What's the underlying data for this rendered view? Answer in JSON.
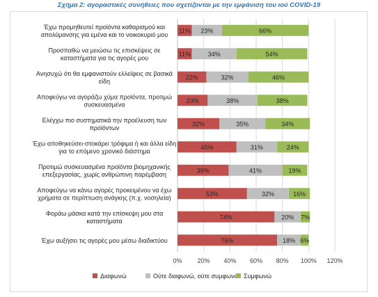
{
  "chart_data": {
    "type": "bar",
    "stacked": true,
    "orientation": "horizontal",
    "title": "Σχήμα 2: αγοραστικές συνήθειες που σχετίζονται με την εμφάνιση του ιού COVID-19",
    "categories": [
      [
        "Έχω προμηθευτεί προϊόντα καθαρισμού και",
        "απολύμανσης για εμένα και το νοικοκυριό μου"
      ],
      [
        "Προσπαθώ να μειώσω τις επισκέψεις σε",
        "καταστήματα για τις αγορές μου"
      ],
      [
        "Ανησυχώ ότι θα εμφανιστούν ελλείψεις σε βασικά",
        "είδη"
      ],
      [
        "Αποφεύγω να αγοράζω χύμα προϊόντα, προτιμώ",
        "συσκευασμένα"
      ],
      [
        "Ελέγχω πιο συστηματικά την προέλευση των",
        "προϊόντων"
      ],
      [
        "Έχω αποθηκεύσει-στοκάρει τρόφιμα ή και άλλα είδη",
        "για το επόμενο χρονικό διάστημα"
      ],
      [
        "Προτιμώ συσκευασμένα προϊόντα βιομηχανικής",
        "επεξεργασίας, χωρίς ανθρώπινη παρέμβαση"
      ],
      [
        "Αποφεύγω να κάνω αγορές προκειμένου να έχω",
        "χρήματα σε περίπτωση ανάγκης (π.χ. νοσηλεία)"
      ],
      [
        "Φοράω μάσκα κατά την επίσκεψη μου στα",
        "καταστήματα"
      ],
      [
        "Έχω αυξήσει τις αγορές μου μέσω διαδικτύου"
      ]
    ],
    "series": [
      {
        "name": "Διαφωνώ",
        "color": "#c0504d",
        "values": [
          11,
          11,
          22,
          23,
          32,
          45,
          39,
          53,
          74,
          76
        ]
      },
      {
        "name": "Ούτε διαφωνώ, ούτε συμφωνώ",
        "color": "#bfbfbf",
        "values": [
          23,
          34,
          32,
          38,
          35,
          31,
          41,
          32,
          20,
          18
        ]
      },
      {
        "name": "Συμφωνώ",
        "color": "#9bbb59",
        "values": [
          66,
          54,
          46,
          38,
          34,
          24,
          19,
          16,
          7,
          6
        ]
      }
    ],
    "xlim": [
      0,
      120
    ],
    "xticks": [
      "0%",
      "20%",
      "40%",
      "60%",
      "80%",
      "100%",
      "120%"
    ],
    "value_suffix": "%",
    "legend_position": "bottom"
  }
}
